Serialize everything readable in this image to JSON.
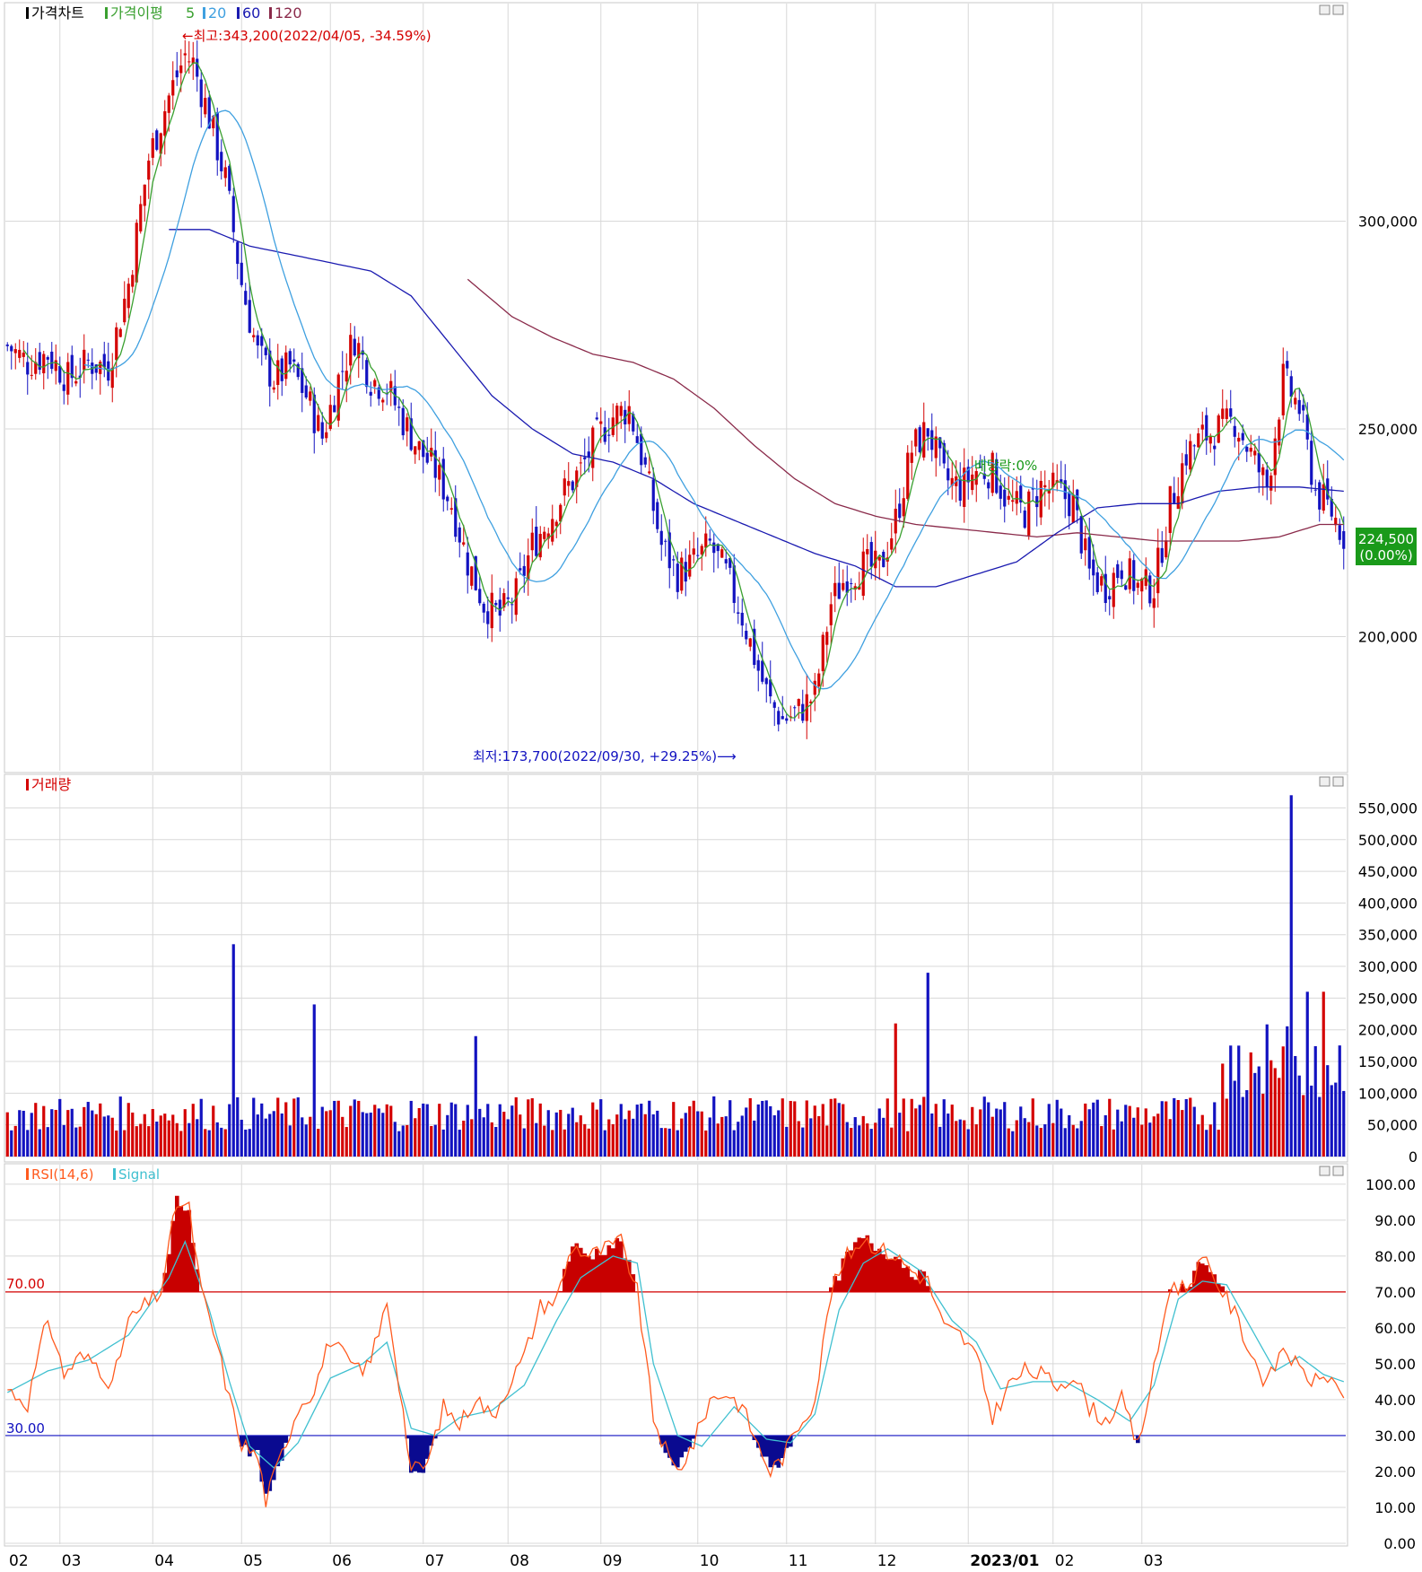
{
  "colors": {
    "up": "#d40000",
    "down": "#1212c0",
    "ma5": "#3aa030",
    "ma20": "#3fa0e0",
    "ma60": "#1a1ab0",
    "ma120": "#8a2a4a",
    "rsi": "#ff5a1e",
    "signal": "#40c0d0",
    "grid": "#d8d8d8",
    "accent_green": "#1a9a1a"
  },
  "price_panel": {
    "legend": {
      "title": "가격차트",
      "ma_label": "가격이평",
      "ma_periods": [
        "5",
        "20",
        "60",
        "120"
      ]
    },
    "high_annotation": "←최고:343,200(2022/04/05, -34.59%)",
    "low_annotation": "최저:173,700(2022/09/30, +29.25%)⟶",
    "dividend_label": "배당락:0%",
    "y_ticks": [
      "300,000",
      "250,000",
      "200,000"
    ],
    "y_tick_values": [
      300000,
      250000,
      200000
    ],
    "current_price": "224,500",
    "current_change": "(0.00%)"
  },
  "volume_panel": {
    "title": "거래량",
    "y_ticks": [
      "550,000",
      "500,000",
      "450,000",
      "400,000",
      "350,000",
      "300,000",
      "250,000",
      "200,000",
      "150,000",
      "100,000",
      "50,000",
      "0"
    ]
  },
  "rsi_panel": {
    "title": "RSI(14,6)",
    "signal_label": "Signal",
    "upper_label": "70.00",
    "lower_label": "30.00",
    "y_ticks": [
      "100.00",
      "90.00",
      "80.00",
      "70.00",
      "60.00",
      "50.00",
      "40.00",
      "30.00",
      "20.00",
      "10.00",
      "0.00"
    ]
  },
  "x_axis": {
    "labels": [
      "02",
      "03",
      "04",
      "05",
      "06",
      "07",
      "08",
      "09",
      "10",
      "11",
      "12",
      "2023/01",
      "02",
      "03"
    ]
  },
  "chart_data": {
    "type": "candlestick",
    "title": "가격차트",
    "ma_periods": [
      5,
      20,
      60,
      120
    ],
    "price_range": [
      175000,
      345000
    ],
    "key_points": [
      {
        "label": "최고",
        "value": 343200,
        "date": "2022/04/05"
      },
      {
        "label": "최저",
        "value": 173700,
        "date": "2022/09/30"
      },
      {
        "label": "current",
        "value": 224500,
        "change": "0.00%"
      }
    ],
    "price_path": [
      [
        0,
        270000
      ],
      [
        5,
        266000
      ],
      [
        10,
        268000
      ],
      [
        15,
        262000
      ],
      [
        20,
        266000
      ],
      [
        25,
        265000
      ],
      [
        30,
        285000
      ],
      [
        35,
        315000
      ],
      [
        40,
        330000
      ],
      [
        44,
        340000
      ],
      [
        46,
        338000
      ],
      [
        50,
        325000
      ],
      [
        54,
        310000
      ],
      [
        58,
        285000
      ],
      [
        62,
        268000
      ],
      [
        66,
        262000
      ],
      [
        70,
        265000
      ],
      [
        74,
        258000
      ],
      [
        78,
        248000
      ],
      [
        82,
        262000
      ],
      [
        86,
        272000
      ],
      [
        90,
        262000
      ],
      [
        94,
        260000
      ],
      [
        98,
        252000
      ],
      [
        102,
        245000
      ],
      [
        106,
        240000
      ],
      [
        110,
        232000
      ],
      [
        114,
        218000
      ],
      [
        118,
        208000
      ],
      [
        122,
        205000
      ],
      [
        126,
        210000
      ],
      [
        130,
        222000
      ],
      [
        134,
        228000
      ],
      [
        138,
        235000
      ],
      [
        142,
        240000
      ],
      [
        146,
        248000
      ],
      [
        150,
        253000
      ],
      [
        154,
        255000
      ],
      [
        158,
        240000
      ],
      [
        162,
        222000
      ],
      [
        166,
        215000
      ],
      [
        170,
        218000
      ],
      [
        174,
        222000
      ],
      [
        178,
        215000
      ],
      [
        182,
        205000
      ],
      [
        186,
        192000
      ],
      [
        189,
        184000
      ],
      [
        192,
        180000
      ],
      [
        196,
        182000
      ],
      [
        200,
        186000
      ],
      [
        204,
        208000
      ],
      [
        208,
        215000
      ],
      [
        212,
        217000
      ],
      [
        216,
        216000
      ],
      [
        220,
        228000
      ],
      [
        224,
        245000
      ],
      [
        228,
        250000
      ],
      [
        232,
        238000
      ],
      [
        236,
        236000
      ],
      [
        240,
        240000
      ],
      [
        244,
        240000
      ],
      [
        248,
        232000
      ],
      [
        252,
        230000
      ],
      [
        256,
        236000
      ],
      [
        260,
        235000
      ],
      [
        264,
        232000
      ],
      [
        268,
        215000
      ],
      [
        272,
        212000
      ],
      [
        276,
        217000
      ],
      [
        280,
        212000
      ],
      [
        284,
        212000
      ],
      [
        288,
        232000
      ],
      [
        292,
        244000
      ],
      [
        296,
        248000
      ],
      [
        300,
        250000
      ],
      [
        304,
        252000
      ],
      [
        308,
        244000
      ],
      [
        312,
        236000
      ],
      [
        316,
        262000
      ],
      [
        320,
        255000
      ],
      [
        324,
        235000
      ],
      [
        328,
        230000
      ],
      [
        331,
        224500
      ]
    ],
    "ma60_path": [
      [
        40,
        298000
      ],
      [
        50,
        298000
      ],
      [
        60,
        294000
      ],
      [
        70,
        292000
      ],
      [
        80,
        290000
      ],
      [
        90,
        288000
      ],
      [
        100,
        282000
      ],
      [
        110,
        270000
      ],
      [
        120,
        258000
      ],
      [
        130,
        250000
      ],
      [
        140,
        244000
      ],
      [
        150,
        242000
      ],
      [
        160,
        238000
      ],
      [
        170,
        232000
      ],
      [
        180,
        228000
      ],
      [
        190,
        224000
      ],
      [
        200,
        220000
      ],
      [
        210,
        217000
      ],
      [
        220,
        212000
      ],
      [
        230,
        212000
      ],
      [
        240,
        215000
      ],
      [
        250,
        218000
      ],
      [
        260,
        225000
      ],
      [
        270,
        231000
      ],
      [
        280,
        232000
      ],
      [
        290,
        232000
      ],
      [
        300,
        235000
      ],
      [
        310,
        236000
      ],
      [
        320,
        236000
      ],
      [
        331,
        235000
      ]
    ],
    "ma120_path": [
      [
        114,
        286000
      ],
      [
        125,
        277000
      ],
      [
        135,
        272000
      ],
      [
        145,
        268000
      ],
      [
        155,
        266000
      ],
      [
        165,
        262000
      ],
      [
        175,
        255000
      ],
      [
        185,
        246000
      ],
      [
        195,
        238000
      ],
      [
        205,
        232000
      ],
      [
        215,
        229000
      ],
      [
        225,
        227000
      ],
      [
        235,
        226000
      ],
      [
        245,
        225000
      ],
      [
        255,
        224000
      ],
      [
        265,
        225000
      ],
      [
        275,
        224000
      ],
      [
        285,
        223000
      ],
      [
        295,
        223000
      ],
      [
        305,
        223000
      ],
      [
        315,
        224000
      ],
      [
        325,
        227000
      ],
      [
        331,
        227000
      ]
    ],
    "volume_range": [
      0,
      550000
    ],
    "volume_spikes": [
      {
        "index": 56,
        "value": 335000
      },
      {
        "index": 76,
        "value": 240000
      },
      {
        "index": 116,
        "value": 190000
      },
      {
        "index": 228,
        "value": 290000
      },
      {
        "index": 220,
        "value": 210000
      },
      {
        "index": 318,
        "value": 570000
      },
      {
        "index": 322,
        "value": 260000
      },
      {
        "index": 326,
        "value": 260000
      }
    ],
    "rsi_range": [
      0,
      100
    ],
    "rsi_levels": {
      "upper": 70,
      "lower": 30
    },
    "rsi_path": [
      [
        0,
        43
      ],
      [
        5,
        39
      ],
      [
        10,
        63
      ],
      [
        14,
        47
      ],
      [
        18,
        52
      ],
      [
        22,
        50
      ],
      [
        26,
        44
      ],
      [
        30,
        62
      ],
      [
        34,
        66
      ],
      [
        38,
        70
      ],
      [
        42,
        95
      ],
      [
        45,
        93
      ],
      [
        48,
        70
      ],
      [
        52,
        55
      ],
      [
        55,
        40
      ],
      [
        58,
        28
      ],
      [
        62,
        24
      ],
      [
        64,
        12
      ],
      [
        68,
        25
      ],
      [
        72,
        38
      ],
      [
        76,
        43
      ],
      [
        80,
        57
      ],
      [
        84,
        51
      ],
      [
        88,
        47
      ],
      [
        92,
        58
      ],
      [
        94,
        68
      ],
      [
        97,
        45
      ],
      [
        100,
        20
      ],
      [
        104,
        22
      ],
      [
        108,
        38
      ],
      [
        112,
        33
      ],
      [
        116,
        41
      ],
      [
        120,
        35
      ],
      [
        124,
        44
      ],
      [
        128,
        52
      ],
      [
        132,
        66
      ],
      [
        136,
        68
      ],
      [
        140,
        83
      ],
      [
        144,
        80
      ],
      [
        148,
        82
      ],
      [
        152,
        84
      ],
      [
        156,
        70
      ],
      [
        160,
        35
      ],
      [
        164,
        23
      ],
      [
        166,
        20
      ],
      [
        170,
        28
      ],
      [
        174,
        40
      ],
      [
        178,
        42
      ],
      [
        182,
        38
      ],
      [
        186,
        27
      ],
      [
        189,
        20
      ],
      [
        192,
        24
      ],
      [
        196,
        33
      ],
      [
        200,
        40
      ],
      [
        204,
        70
      ],
      [
        208,
        80
      ],
      [
        212,
        85
      ],
      [
        216,
        82
      ],
      [
        220,
        80
      ],
      [
        224,
        76
      ],
      [
        228,
        73
      ],
      [
        232,
        60
      ],
      [
        236,
        58
      ],
      [
        240,
        52
      ],
      [
        244,
        35
      ],
      [
        248,
        44
      ],
      [
        252,
        48
      ],
      [
        256,
        47
      ],
      [
        260,
        44
      ],
      [
        264,
        47
      ],
      [
        268,
        38
      ],
      [
        272,
        34
      ],
      [
        276,
        40
      ],
      [
        280,
        27
      ],
      [
        284,
        48
      ],
      [
        288,
        72
      ],
      [
        292,
        71
      ],
      [
        296,
        79
      ],
      [
        300,
        72
      ],
      [
        304,
        64
      ],
      [
        308,
        53
      ],
      [
        312,
        44
      ],
      [
        316,
        55
      ],
      [
        320,
        48
      ],
      [
        324,
        45
      ],
      [
        328,
        47
      ],
      [
        331,
        38
      ]
    ],
    "signal_path": [
      [
        0,
        42
      ],
      [
        10,
        48
      ],
      [
        20,
        51
      ],
      [
        30,
        58
      ],
      [
        40,
        74
      ],
      [
        44,
        84
      ],
      [
        50,
        65
      ],
      [
        55,
        45
      ],
      [
        60,
        27
      ],
      [
        66,
        21
      ],
      [
        72,
        28
      ],
      [
        80,
        46
      ],
      [
        88,
        50
      ],
      [
        94,
        56
      ],
      [
        100,
        32
      ],
      [
        106,
        30
      ],
      [
        112,
        35
      ],
      [
        120,
        37
      ],
      [
        128,
        44
      ],
      [
        136,
        62
      ],
      [
        142,
        74
      ],
      [
        150,
        80
      ],
      [
        156,
        78
      ],
      [
        160,
        50
      ],
      [
        166,
        30
      ],
      [
        172,
        27
      ],
      [
        180,
        38
      ],
      [
        188,
        29
      ],
      [
        194,
        28
      ],
      [
        200,
        36
      ],
      [
        206,
        65
      ],
      [
        212,
        78
      ],
      [
        218,
        82
      ],
      [
        226,
        76
      ],
      [
        234,
        62
      ],
      [
        240,
        56
      ],
      [
        246,
        43
      ],
      [
        254,
        45
      ],
      [
        262,
        45
      ],
      [
        270,
        40
      ],
      [
        278,
        34
      ],
      [
        284,
        44
      ],
      [
        290,
        68
      ],
      [
        296,
        73
      ],
      [
        302,
        72
      ],
      [
        308,
        60
      ],
      [
        314,
        48
      ],
      [
        320,
        52
      ],
      [
        326,
        47
      ],
      [
        331,
        45
      ]
    ]
  }
}
